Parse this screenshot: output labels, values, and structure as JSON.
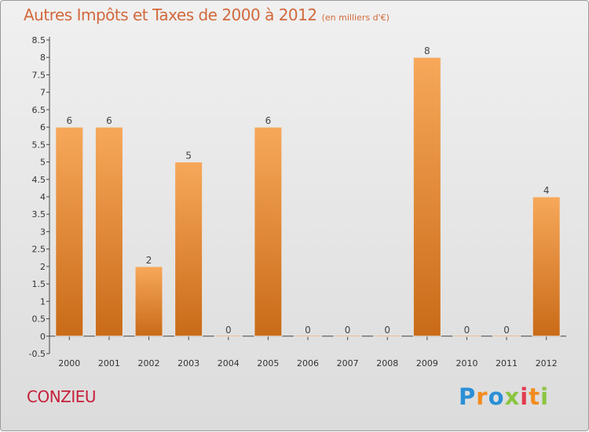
{
  "header": {
    "title": "Autres Impôts et Taxes de 2000 à 2012",
    "subtitle": "(en milliers d'€)"
  },
  "footer": {
    "town": "CONZIEU",
    "logo": [
      "P",
      "r",
      "o",
      "x",
      "i",
      "t",
      "i"
    ],
    "logo_colors": [
      "#2a8fd6",
      "#f28c1e",
      "#2a8fd6",
      "#8bc53f",
      "#e23a4f",
      "#f28c1e",
      "#8bc53f"
    ]
  },
  "chart_data": {
    "type": "bar",
    "title": "Autres Impôts et Taxes de 2000 à 2012",
    "subtitle": "(en milliers d'€)",
    "categories": [
      "2000",
      "2001",
      "2002",
      "2003",
      "2004",
      "2005",
      "2006",
      "2007",
      "2008",
      "2009",
      "2010",
      "2011",
      "2012"
    ],
    "values": [
      6,
      6,
      2,
      5,
      0,
      6,
      0,
      0,
      0,
      8,
      0,
      0,
      4
    ],
    "value_labels": [
      "6",
      "6",
      "2",
      "5",
      "0",
      "6",
      "0",
      "0",
      "0",
      "8",
      "0",
      "0",
      "4"
    ],
    "y_ticks": [
      "-0.5",
      "0",
      "0.5",
      "1",
      "1.5",
      "2",
      "2.5",
      "3",
      "3.5",
      "4",
      "4.5",
      "5",
      "5.5",
      "6",
      "6.5",
      "7",
      "7.5",
      "8",
      "8.5"
    ],
    "ylim": [
      -0.5,
      8.5
    ],
    "grid": false,
    "bar_color_top": "#f7a85a",
    "bar_color_bottom": "#c96b18"
  }
}
